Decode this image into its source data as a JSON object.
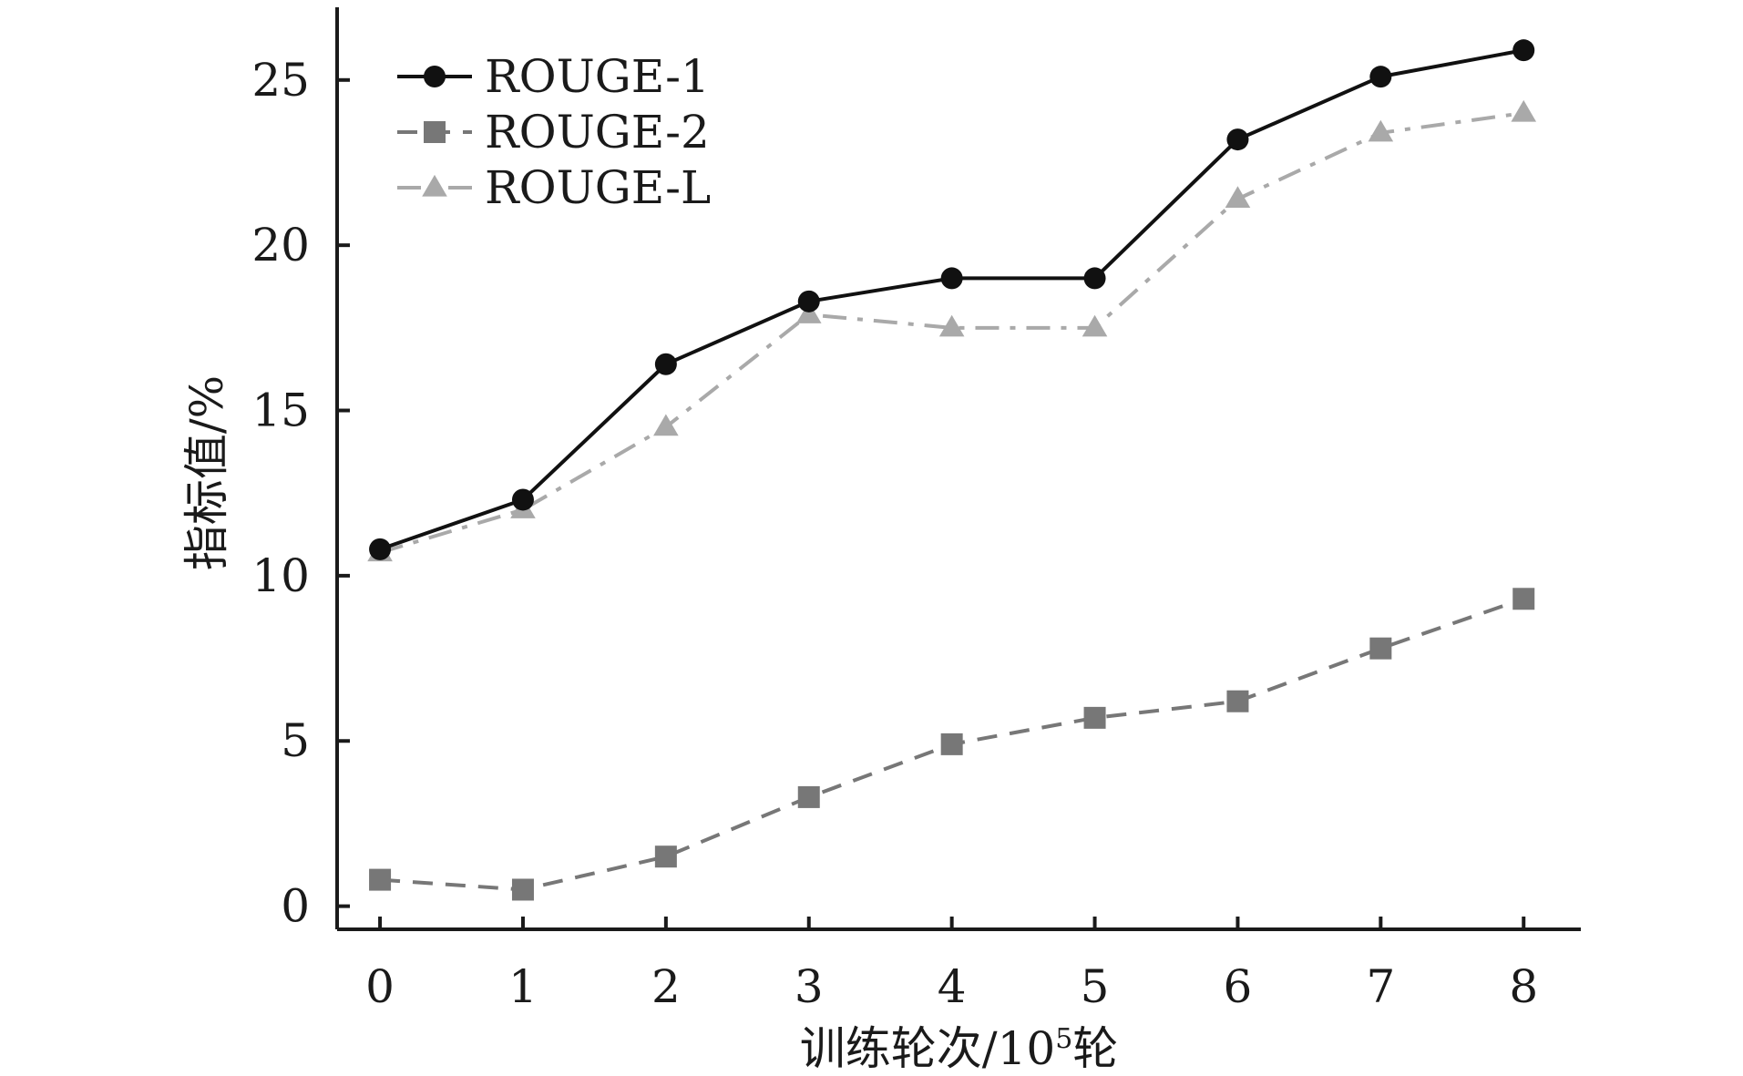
{
  "chart_data": {
    "type": "line",
    "xlabel": "训练轮次/10",
    "xlabel_sup": "5",
    "xlabel_suffix": "轮",
    "ylabel": "指标值/%",
    "x": [
      0,
      1,
      2,
      3,
      4,
      5,
      6,
      7,
      8
    ],
    "xticks": [
      "0",
      "1",
      "2",
      "3",
      "4",
      "5",
      "6",
      "7",
      "8"
    ],
    "yticks": [
      "0",
      "5",
      "10",
      "15",
      "20",
      "25"
    ],
    "ylim": [
      -0.7,
      27.2
    ],
    "xlim": [
      -0.3,
      8.4
    ],
    "grid": false,
    "legend_position": "top-left",
    "series": [
      {
        "name": "ROUGE-1",
        "color": "#111111",
        "marker": "circle",
        "dash": "solid",
        "values": [
          10.8,
          12.3,
          16.4,
          18.3,
          19.0,
          19.0,
          23.2,
          25.1,
          25.9
        ]
      },
      {
        "name": "ROUGE-2",
        "color": "#777777",
        "marker": "square",
        "dash": "dashed",
        "values": [
          0.8,
          0.5,
          1.5,
          3.3,
          4.9,
          5.7,
          6.2,
          7.8,
          9.3
        ]
      },
      {
        "name": "ROUGE-L",
        "color": "#a9a9a9",
        "marker": "triangle",
        "dash": "dashdot",
        "values": [
          10.7,
          12.0,
          14.5,
          17.9,
          17.5,
          17.5,
          21.4,
          23.4,
          24.0
        ]
      }
    ]
  }
}
